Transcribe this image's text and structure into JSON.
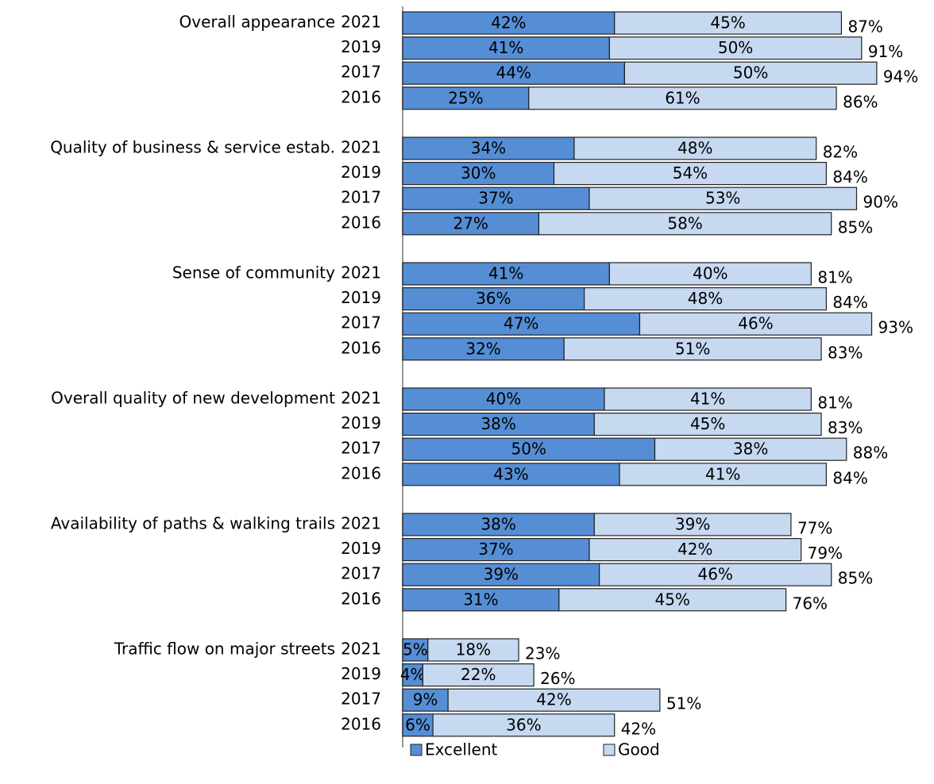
{
  "chart_data": {
    "type": "bar",
    "orientation": "horizontal",
    "stacked": true,
    "groups": [
      "Overall appearance",
      "Quality of business & service estab.",
      "Sense of community",
      "Overall quality of new development",
      "Availability of paths & walking trails",
      "Traffic flow on major streets"
    ],
    "years": [
      "2021",
      "2019",
      "2017",
      "2016"
    ],
    "xlim": [
      0,
      100
    ],
    "series": [
      {
        "name": "Excellent",
        "color": "#558ed5",
        "values": [
          42,
          41,
          44,
          25,
          34,
          30,
          37,
          27,
          41,
          36,
          47,
          32,
          40,
          38,
          50,
          43,
          38,
          37,
          39,
          31,
          5,
          4,
          9,
          6
        ],
        "value_labels": [
          "42%",
          "41%",
          "44%",
          "25%",
          "34%",
          "30%",
          "37%",
          "27%",
          "41%",
          "36%",
          "47%",
          "32%",
          "40%",
          "38%",
          "50%",
          "43%",
          "38%",
          "37%",
          "39%",
          "31%",
          "5%",
          "4%",
          "9%",
          "6%"
        ]
      },
      {
        "name": "Good",
        "color": "#c6d9f1",
        "values": [
          45,
          50,
          50,
          61,
          48,
          54,
          53,
          58,
          40,
          48,
          46,
          51,
          41,
          45,
          38,
          41,
          39,
          42,
          46,
          45,
          18,
          22,
          42,
          36
        ],
        "value_labels": [
          "45%",
          "50%",
          "50%",
          "61%",
          "48%",
          "54%",
          "53%",
          "58%",
          "40%",
          "48%",
          "46%",
          "51%",
          "41%",
          "45%",
          "38%",
          "41%",
          "39%",
          "42%",
          "46%",
          "45%",
          "18%",
          "22%",
          "42%",
          "36%"
        ]
      }
    ],
    "totals": {
      "values": [
        87,
        91,
        94,
        86,
        82,
        84,
        90,
        85,
        81,
        84,
        93,
        83,
        81,
        83,
        88,
        84,
        77,
        79,
        85,
        76,
        23,
        26,
        51,
        42
      ],
      "value_labels": [
        "87%",
        "91%",
        "94%",
        "86%",
        "82%",
        "84%",
        "90%",
        "85%",
        "81%",
        "84%",
        "93%",
        "83%",
        "81%",
        "83%",
        "88%",
        "84%",
        "77%",
        "79%",
        "85%",
        "76%",
        "23%",
        "26%",
        "51%",
        "42%"
      ]
    }
  }
}
